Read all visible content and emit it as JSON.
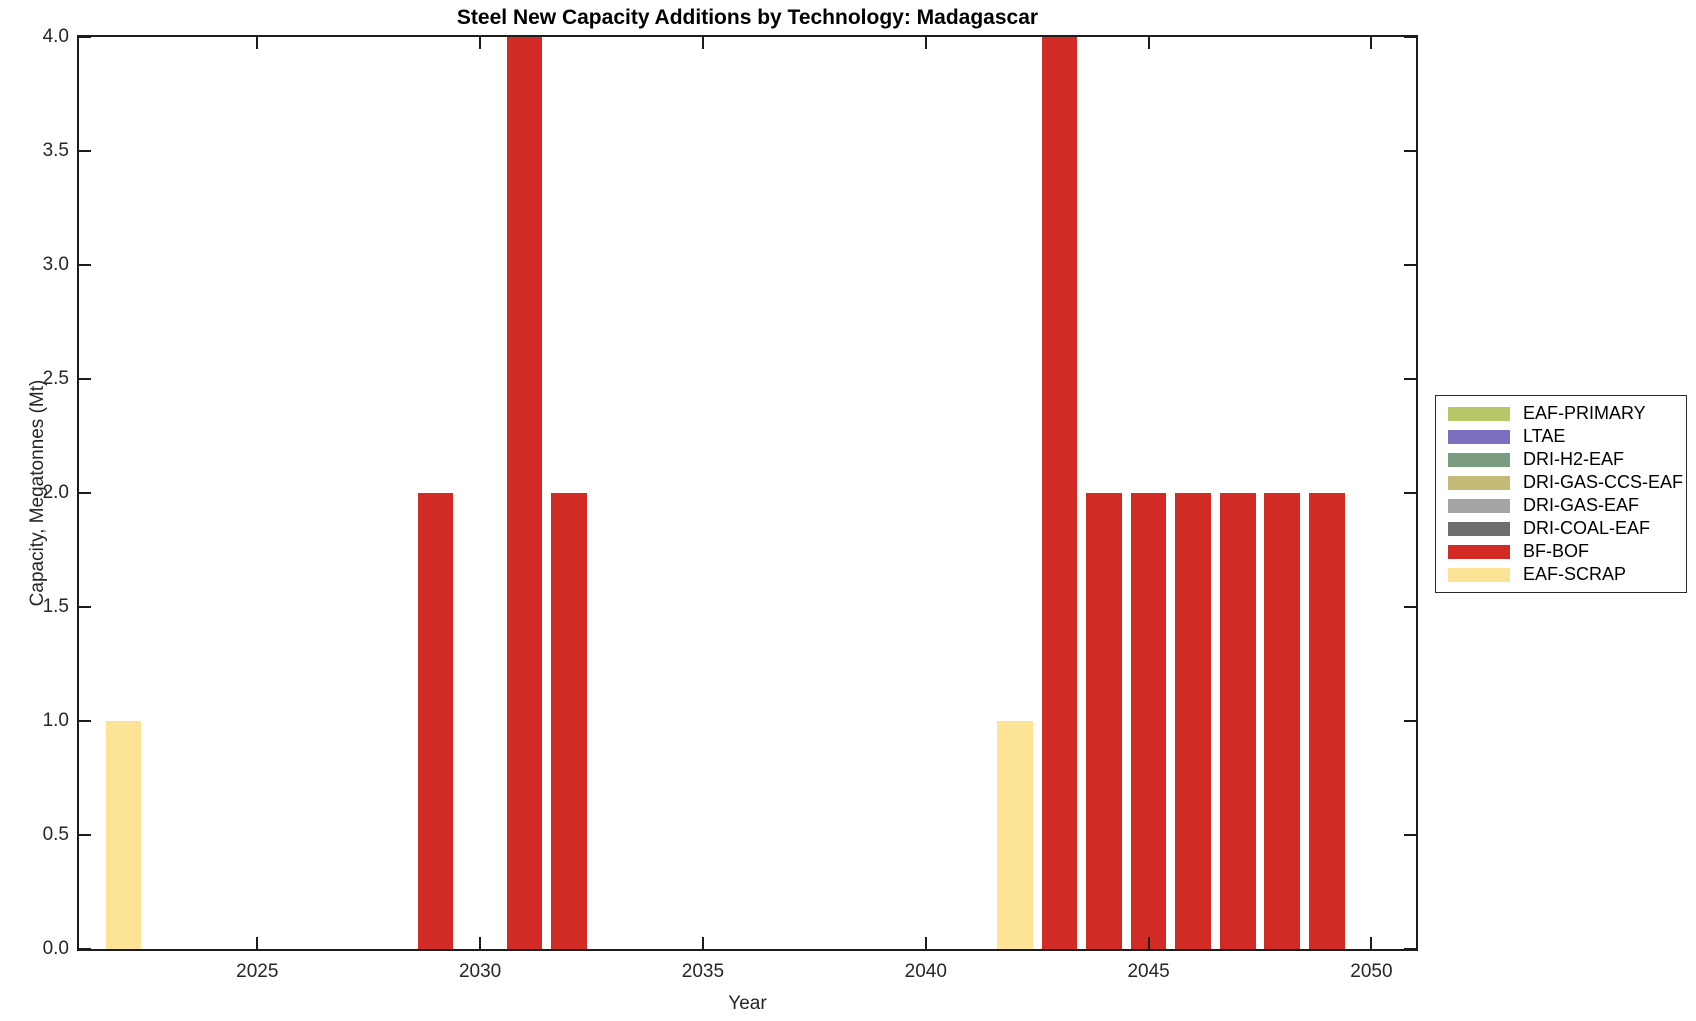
{
  "title": "Steel New Capacity Additions by Technology: Madagascar",
  "chart_data": {
    "type": "bar",
    "title": "Steel New Capacity Additions by Technology: Madagascar",
    "xlabel": "Year",
    "ylabel": "Capacity, Megatonnes (Mt)",
    "xlim": [
      2021,
      2051
    ],
    "ylim": [
      0,
      4
    ],
    "grid": false,
    "legend_position": "right-outside",
    "bar_width_years": 0.8,
    "xticks": [
      2025,
      2030,
      2035,
      2040,
      2045,
      2050
    ],
    "xtick_labels": [
      "2025",
      "2030",
      "2035",
      "2040",
      "2045",
      "2050"
    ],
    "yticks": [
      0,
      0.5,
      1,
      1.5,
      2,
      2.5,
      3,
      3.5,
      4
    ],
    "ytick_labels": [
      "0.0",
      "0.5",
      "1.0",
      "1.5",
      "2.0",
      "2.5",
      "3.0",
      "3.5",
      "4.0"
    ],
    "legend": [
      {
        "label": "EAF-PRIMARY",
        "color": "#b8c869"
      },
      {
        "label": "LTAE",
        "color": "#7c6fc0"
      },
      {
        "label": "DRI-H2-EAF",
        "color": "#7b9c81"
      },
      {
        "label": "DRI-GAS-CCS-EAF",
        "color": "#c5ba77"
      },
      {
        "label": "DRI-GAS-EAF",
        "color": "#a5a5a5"
      },
      {
        "label": "DRI-COAL-EAF",
        "color": "#6e6e6e"
      },
      {
        "label": "BF-BOF",
        "color": "#d22b26"
      },
      {
        "label": "EAF-SCRAP",
        "color": "#fde396"
      }
    ],
    "series": [
      {
        "name": "BF-BOF",
        "color": "#d22b26",
        "points": [
          {
            "x": 2029,
            "y": 2.0
          },
          {
            "x": 2031,
            "y": 4.0
          },
          {
            "x": 2032,
            "y": 2.0
          },
          {
            "x": 2043,
            "y": 4.0
          },
          {
            "x": 2044,
            "y": 2.0
          },
          {
            "x": 2045,
            "y": 2.0
          },
          {
            "x": 2046,
            "y": 2.0
          },
          {
            "x": 2047,
            "y": 2.0
          },
          {
            "x": 2048,
            "y": 2.0
          },
          {
            "x": 2049,
            "y": 2.0
          }
        ]
      },
      {
        "name": "EAF-SCRAP",
        "color": "#fde396",
        "points": [
          {
            "x": 2022,
            "y": 1.0
          },
          {
            "x": 2042,
            "y": 1.0
          }
        ]
      }
    ],
    "axis_color": "#1c1c1c",
    "tick_label_color": "#262626"
  }
}
